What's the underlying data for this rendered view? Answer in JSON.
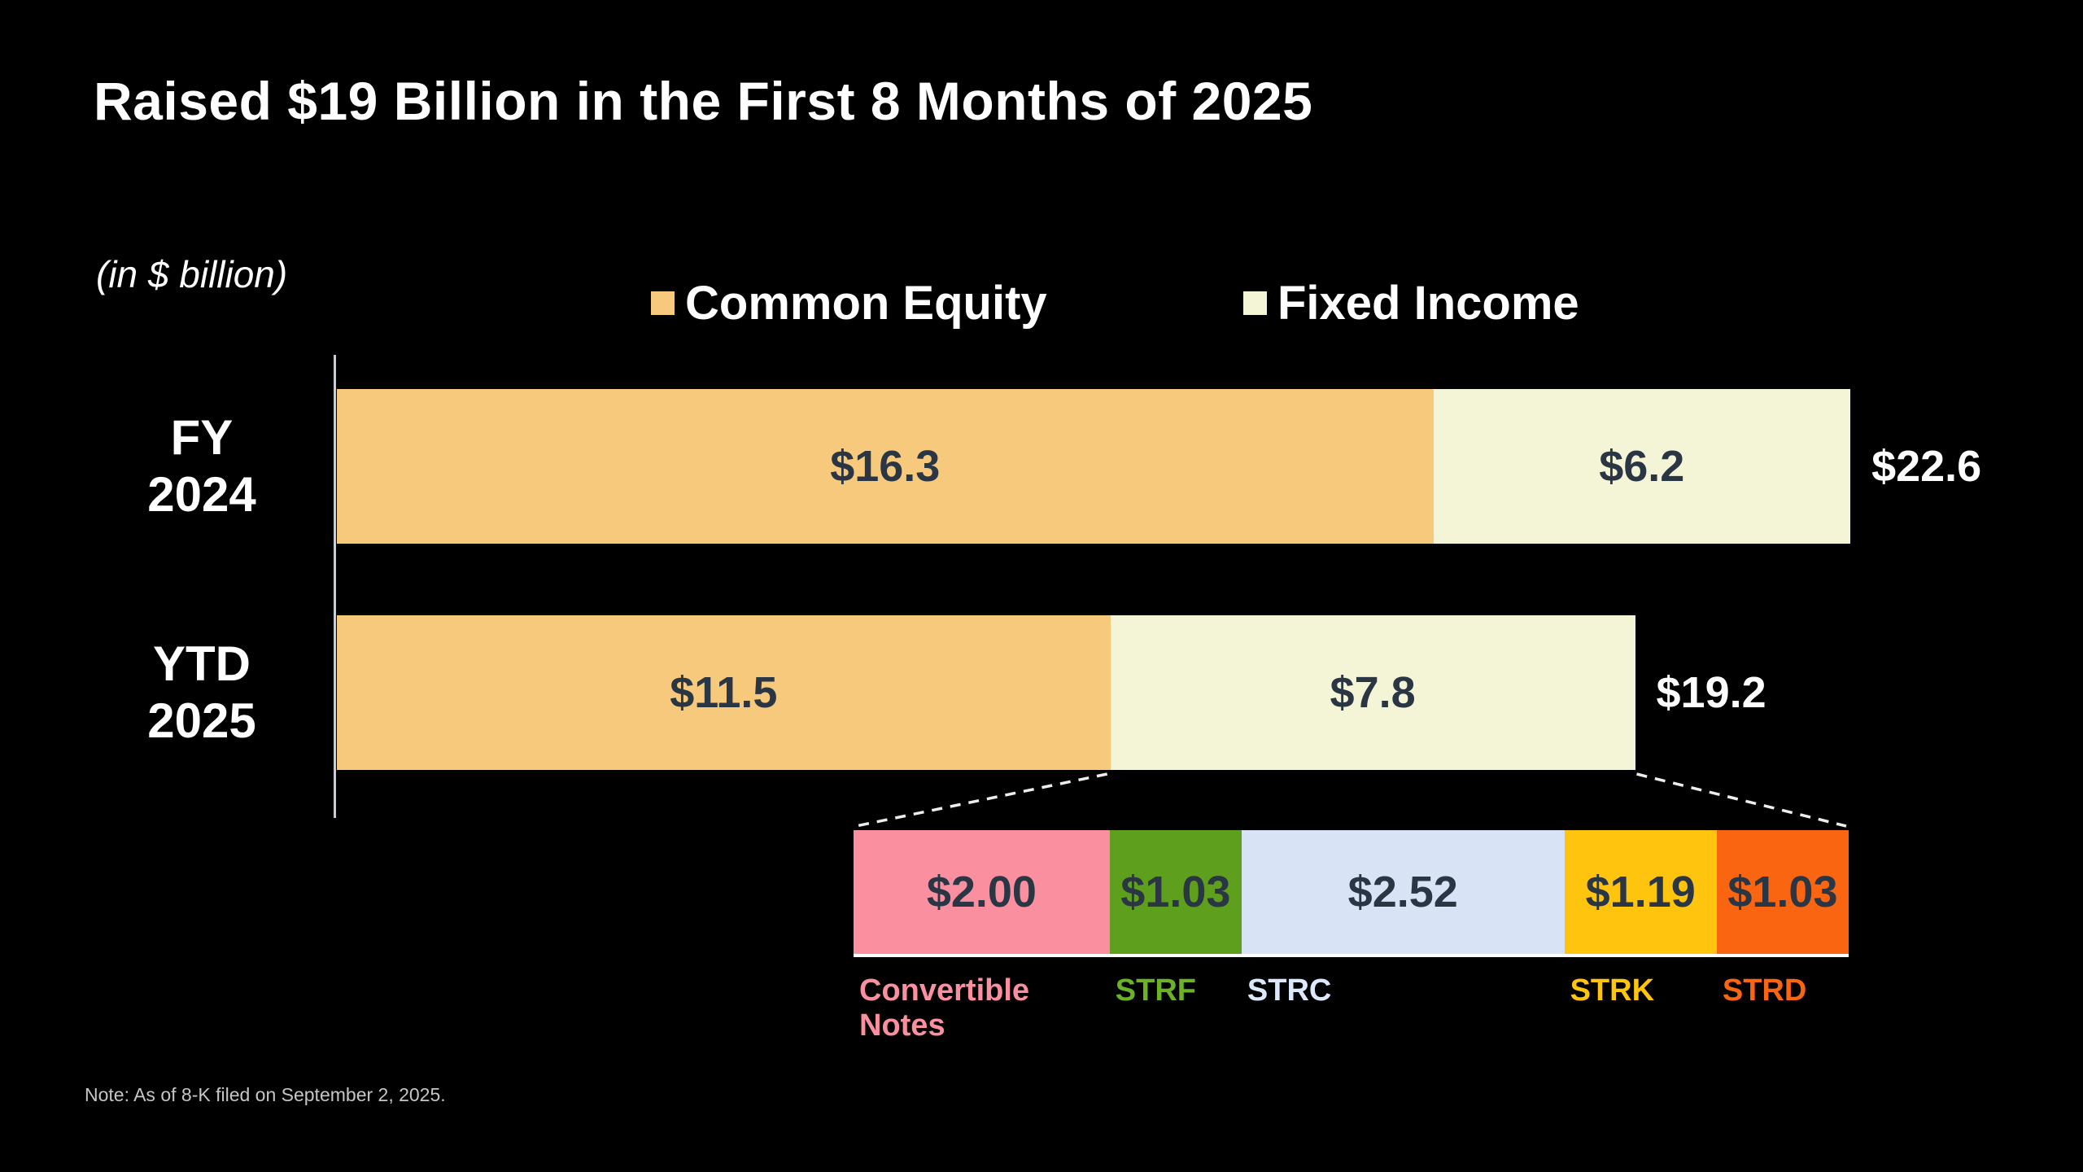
{
  "title": "Raised $19 Billion in the First 8 Months of 2025",
  "units_label": "(in $ billion)",
  "note": "Note: As of 8-K filed on September 2, 2025.",
  "legend": [
    {
      "label": "Common Equity",
      "color": "#F6C97C"
    },
    {
      "label": "Fixed Income",
      "color": "#F4F4D6"
    }
  ],
  "chart_data": {
    "type": "bar",
    "orientation": "horizontal",
    "stacked": true,
    "legend_position": "top",
    "grid": false,
    "value_axis_visible": false,
    "categories": [
      "FY\n2024",
      "YTD\n2025"
    ],
    "series": [
      {
        "name": "Common Equity",
        "color": "#F6C97C",
        "values": [
          16.3,
          11.5
        ],
        "value_labels": [
          "$16.3",
          "$11.5"
        ]
      },
      {
        "name": "Fixed Income",
        "color": "#F4F4D6",
        "values": [
          6.2,
          7.8
        ],
        "value_labels": [
          "$6.2",
          "$7.8"
        ]
      }
    ],
    "totals": [
      "$22.6",
      "$19.2"
    ],
    "value_text_color": "#2B3645",
    "breakdown": {
      "segments": [
        {
          "label": "Convertible Notes",
          "value": 2.0,
          "value_label": "$2.00",
          "color": "#FA8FA0",
          "label_color": "#FA8FA0"
        },
        {
          "label": "STRF",
          "value": 1.03,
          "value_label": "$1.03",
          "color": "#5F9F1E",
          "label_color": "#6CB226"
        },
        {
          "label": "STRC",
          "value": 2.52,
          "value_label": "$2.52",
          "color": "#D8E4F6",
          "label_color": "#DDE9FA"
        },
        {
          "label": "STRK",
          "value": 1.19,
          "value_label": "$1.19",
          "color": "#FFC40D",
          "label_color": "#FFC40D"
        },
        {
          "label": "STRD",
          "value": 1.03,
          "value_label": "$1.03",
          "color": "#F96511",
          "label_color": "#F96511"
        }
      ]
    }
  }
}
